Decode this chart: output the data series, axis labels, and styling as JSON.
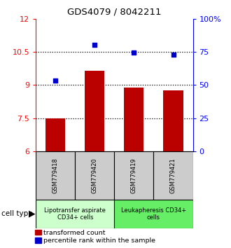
{
  "title": "GDS4079 / 8042211",
  "samples": [
    "GSM779418",
    "GSM779420",
    "GSM779419",
    "GSM779421"
  ],
  "bar_values": [
    7.5,
    9.65,
    8.88,
    8.75
  ],
  "scatter_values": [
    9.2,
    10.82,
    10.48,
    10.38
  ],
  "bar_color": "#bb0000",
  "scatter_color": "#0000cc",
  "ylim_left": [
    6,
    12
  ],
  "ylim_right": [
    0,
    100
  ],
  "yticks_left": [
    6,
    7.5,
    9,
    10.5,
    12
  ],
  "yticks_left_labels": [
    "6",
    "7.5",
    "9",
    "10.5",
    "12"
  ],
  "yticks_right": [
    0,
    25,
    50,
    75,
    100
  ],
  "yticks_right_labels": [
    "0",
    "25",
    "50",
    "75",
    "100%"
  ],
  "hlines": [
    7.5,
    9,
    10.5
  ],
  "group1_label": "Lipotransfer aspirate\nCD34+ cells",
  "group2_label": "Leukapheresis CD34+\ncells",
  "cell_type_label": "cell type",
  "legend_bar_label": "transformed count",
  "legend_scatter_label": "percentile rank within the sample",
  "bg_color_group1": "#ccffcc",
  "bg_color_group2": "#66ee66",
  "bg_color_samples": "#cccccc",
  "bar_bottom": 6,
  "bar_width": 0.5
}
